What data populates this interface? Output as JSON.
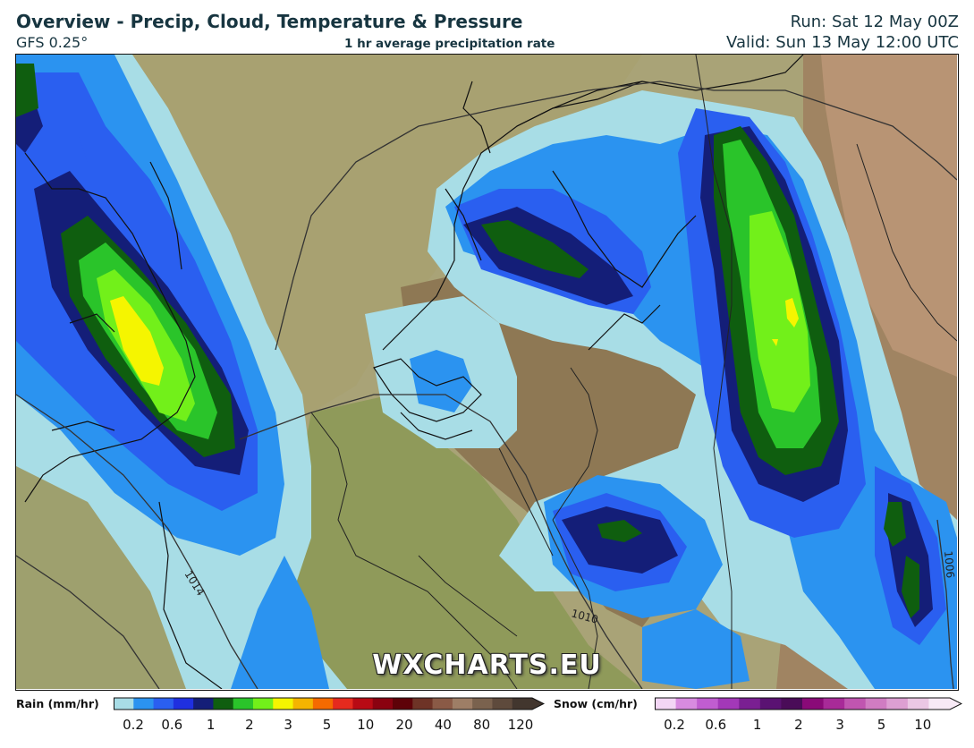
{
  "header": {
    "title": "Overview - Precip, Cloud, Temperature & Pressure",
    "model": "GFS 0.25°",
    "product": "1 hr average precipitation rate",
    "run": "Run: Sat 12 May 00Z",
    "valid": "Valid: Sun 13 May 12:00 UTC"
  },
  "map": {
    "watermark": "WXCHARTS.EU",
    "isobar_labels": [
      "1014",
      "1010",
      "1006"
    ]
  },
  "legend": {
    "rain": {
      "label": "Rain (mm/hr)",
      "ticks": [
        "0.2",
        "0.6",
        "1",
        "2",
        "3",
        "5",
        "10",
        "20",
        "40",
        "80",
        "120"
      ],
      "colors": [
        "#a8dde6",
        "#2b93f0",
        "#2a5ff0",
        "#1f2fe0",
        "#141e78",
        "#0f5e0f",
        "#2ac42a",
        "#72f01a",
        "#f5f500",
        "#f5b400",
        "#f56a00",
        "#e52a1e",
        "#b80a14",
        "#8a0210",
        "#5e0208",
        "#6e3326",
        "#8a5a46",
        "#9e7e66",
        "#7a624e",
        "#5e4a3c",
        "#42362e"
      ]
    },
    "snow": {
      "label": "Snow (cm/hr)",
      "ticks": [
        "0.2",
        "0.6",
        "1",
        "2",
        "3",
        "5",
        "10"
      ],
      "colors": [
        "#f3d6f5",
        "#d88be0",
        "#c05dd0",
        "#a338b8",
        "#7a1f92",
        "#5a1272",
        "#4a0c58",
        "#8a0a78",
        "#a82a98",
        "#c055b0",
        "#d07cc2",
        "#dd9fd2",
        "#ebc7e4",
        "#f8eaf6"
      ]
    }
  }
}
